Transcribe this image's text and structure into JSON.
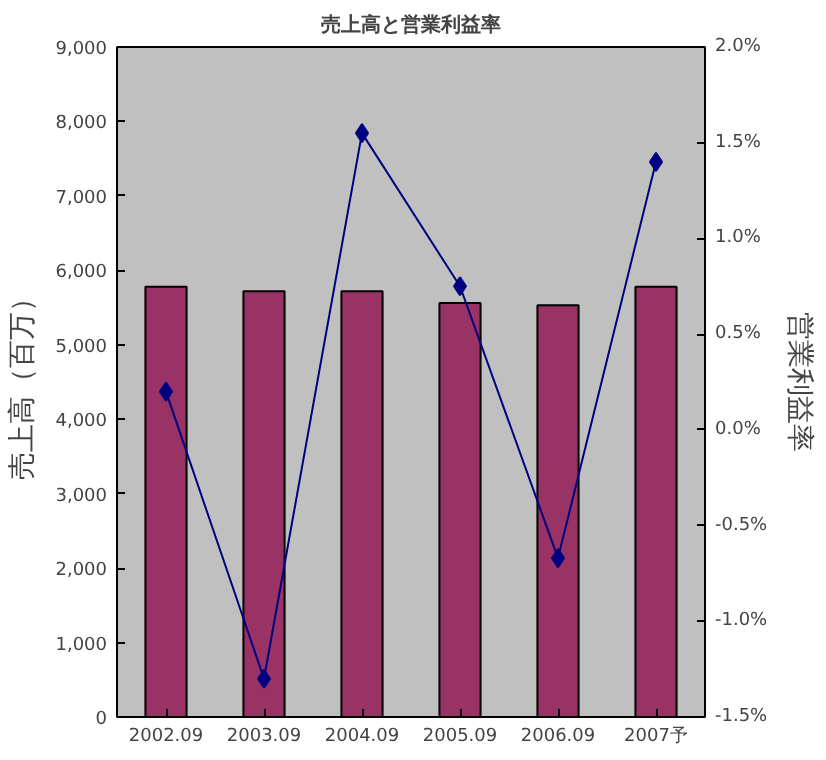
{
  "chart_data": {
    "type": "bar",
    "title": "売上高と営業利益率",
    "ylabel": "売上高（百万）",
    "y2label": "営業利益率",
    "categories": [
      "2002.09",
      "2003.09",
      "2004.09",
      "2005.09",
      "2006.09",
      "2007予"
    ],
    "series": [
      {
        "color": "#993366",
        "values": [
          5780,
          5720,
          5720,
          5560,
          5530,
          5780
        ]
      },
      {
        "type": "line",
        "axis": "y2",
        "color": "#000080",
        "values": [
          0.2,
          -1.3,
          1.55,
          0.75,
          -0.67,
          1.4
        ],
        "marker": "diamond",
        "line_style": "solid"
      }
    ],
    "ylim": [
      0,
      9000
    ],
    "yticks": [
      {
        "value": 0,
        "label": "0"
      },
      {
        "value": 1000,
        "label": "1,000"
      },
      {
        "value": 2000,
        "label": "2,000"
      },
      {
        "value": 3000,
        "label": "3,000"
      },
      {
        "value": 4000,
        "label": "4,000"
      },
      {
        "value": 5000,
        "label": "5,000"
      },
      {
        "value": 6000,
        "label": "6,000"
      },
      {
        "value": 7000,
        "label": "7,000"
      },
      {
        "value": 8000,
        "label": "8,000"
      },
      {
        "value": 9000,
        "label": "9,000"
      }
    ],
    "y2lim": [
      -1.5,
      2.0
    ],
    "y2ticks": [
      {
        "value": -1.5,
        "label": "-1.5%"
      },
      {
        "value": -1.0,
        "label": "-1.0%"
      },
      {
        "value": -0.5,
        "label": "-0.5%"
      },
      {
        "value": 0.0,
        "label": "0.0%"
      },
      {
        "value": 0.5,
        "label": "0.5%"
      },
      {
        "value": 1.0,
        "label": "1.0%"
      },
      {
        "value": 1.5,
        "label": "1.5%"
      },
      {
        "value": 2.0,
        "label": "2.0%"
      }
    ],
    "grid": false
  }
}
